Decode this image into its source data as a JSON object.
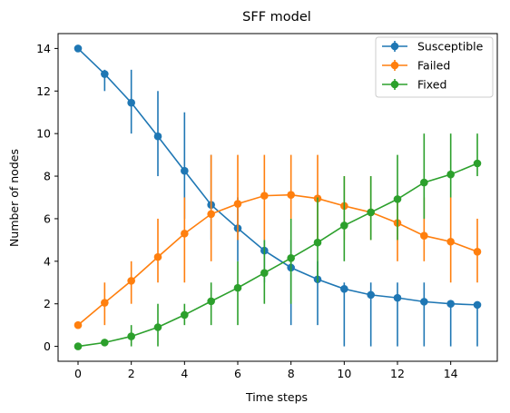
{
  "chart_data": {
    "type": "line",
    "title": "SFF model",
    "xlabel": "Time steps",
    "ylabel": "Number of nodes",
    "xlim": [
      -0.75,
      15.75
    ],
    "ylim": [
      -0.7,
      14.7
    ],
    "xticks": [
      0,
      2,
      4,
      6,
      8,
      10,
      12,
      14
    ],
    "yticks": [
      0,
      2,
      4,
      6,
      8,
      10,
      12,
      14
    ],
    "grid": false,
    "legend_position": "top-right",
    "x": [
      0,
      1,
      2,
      3,
      4,
      5,
      6,
      7,
      8,
      9,
      10,
      11,
      12,
      13,
      14,
      15
    ],
    "series": [
      {
        "name": "Susceptible",
        "color": "#1f77b4",
        "values": [
          14,
          12.8,
          11.45,
          9.87,
          8.25,
          6.65,
          5.55,
          4.5,
          3.7,
          3.15,
          2.7,
          2.42,
          2.28,
          2.1,
          2.0,
          1.95
        ],
        "err_low": [
          14,
          12,
          10,
          8,
          6,
          5,
          4,
          3,
          1,
          1,
          0,
          0,
          0,
          0,
          0,
          0
        ],
        "err_high": [
          14,
          13,
          13,
          12,
          11,
          9,
          7,
          5,
          5,
          4,
          3,
          3,
          3,
          3,
          2,
          2
        ]
      },
      {
        "name": "Failed",
        "color": "#ff7f0e",
        "values": [
          1,
          2.05,
          3.08,
          4.2,
          5.3,
          6.22,
          6.7,
          7.08,
          7.12,
          6.95,
          6.6,
          6.3,
          5.8,
          5.2,
          4.92,
          4.45
        ],
        "err_low": [
          1,
          1,
          2,
          3,
          3,
          4,
          5,
          5,
          6,
          5,
          5,
          5,
          4,
          4,
          3,
          3
        ],
        "err_high": [
          1,
          3,
          4,
          6,
          7,
          9,
          9,
          9,
          9,
          9,
          8,
          8,
          7,
          7,
          7,
          6
        ]
      },
      {
        "name": "Fixed",
        "color": "#2ca02c",
        "values": [
          0,
          0.18,
          0.47,
          0.9,
          1.48,
          2.12,
          2.75,
          3.45,
          4.15,
          4.88,
          5.68,
          6.3,
          6.92,
          7.7,
          8.08,
          8.6
        ],
        "err_low": [
          0,
          0,
          0,
          0,
          1,
          1,
          1,
          2,
          2,
          3,
          4,
          5,
          5,
          6,
          7,
          8
        ],
        "err_high": [
          0,
          0,
          1,
          2,
          2,
          3,
          4,
          5,
          6,
          7,
          8,
          8,
          9,
          10,
          10,
          10
        ]
      }
    ]
  }
}
